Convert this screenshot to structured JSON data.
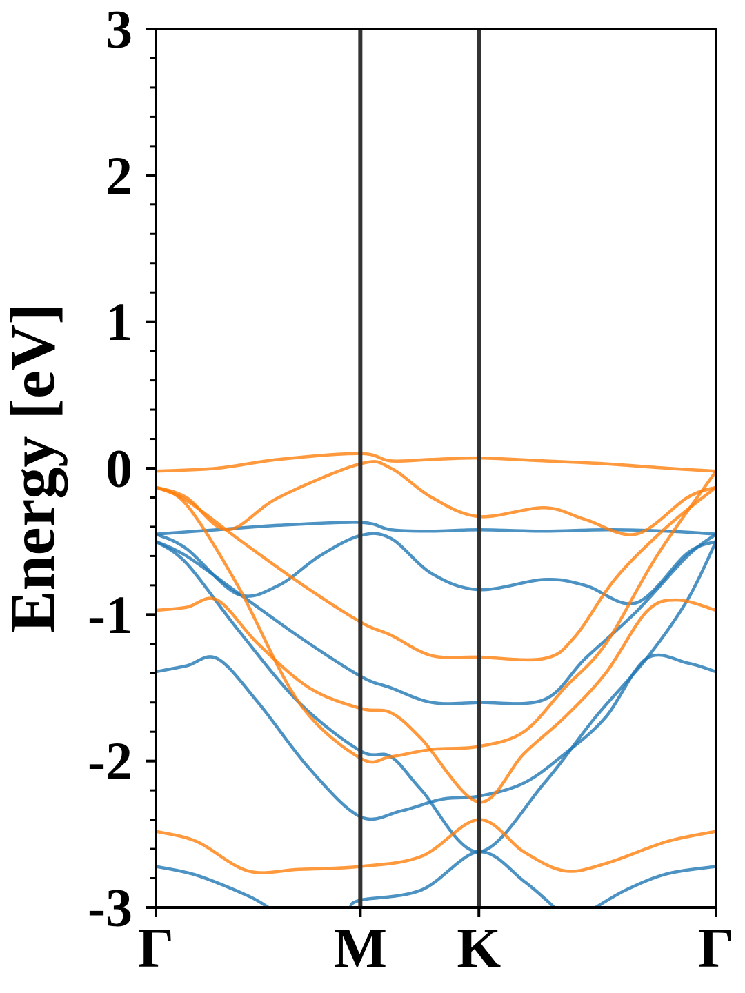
{
  "chart_data": {
    "type": "line",
    "ylabel": "Energy [eV]",
    "xlabel": "",
    "ylim": [
      -3,
      3
    ],
    "y_ticks": [
      "-3",
      "-2",
      "-1",
      "0",
      "1",
      "2",
      "3"
    ],
    "y_tick_values": [
      -3,
      -2,
      -1,
      0,
      1,
      2,
      3
    ],
    "k_path": [
      "Γ",
      "M",
      "K",
      "Γ"
    ],
    "k_path_positions": [
      0,
      1,
      1.58,
      2.74
    ],
    "grid": false,
    "colors": {
      "band_a": "#1f77b4",
      "band_b": "#ff7f0e",
      "k_lines": "#333333",
      "axes": "#000000"
    },
    "series": [
      {
        "group": "band_a",
        "points": [
          [
            0,
            -0.45
          ],
          [
            0.3,
            -0.42
          ],
          [
            0.6,
            -0.39
          ],
          [
            1.0,
            -0.37
          ],
          [
            1.15,
            -0.42
          ],
          [
            1.35,
            -0.43
          ],
          [
            1.58,
            -0.42
          ],
          [
            1.9,
            -0.43
          ],
          [
            2.2,
            -0.42
          ],
          [
            2.5,
            -0.43
          ],
          [
            2.74,
            -0.45
          ]
        ]
      },
      {
        "group": "band_a",
        "points": [
          [
            0,
            -0.45
          ],
          [
            0.15,
            -0.55
          ],
          [
            0.4,
            -0.86
          ],
          [
            0.6,
            -0.8
          ],
          [
            0.8,
            -0.6
          ],
          [
            1.0,
            -0.46
          ],
          [
            1.15,
            -0.48
          ],
          [
            1.35,
            -0.72
          ],
          [
            1.58,
            -0.83
          ],
          [
            1.9,
            -0.76
          ],
          [
            2.1,
            -0.8
          ],
          [
            2.35,
            -0.92
          ],
          [
            2.6,
            -0.58
          ],
          [
            2.74,
            -0.5
          ]
        ]
      },
      {
        "group": "band_a",
        "points": [
          [
            0,
            -0.5
          ],
          [
            0.15,
            -0.6
          ],
          [
            0.4,
            -0.85
          ],
          [
            0.7,
            -1.15
          ],
          [
            1.0,
            -1.42
          ],
          [
            1.15,
            -1.5
          ],
          [
            1.35,
            -1.6
          ],
          [
            1.58,
            -1.6
          ],
          [
            1.9,
            -1.58
          ],
          [
            2.1,
            -1.3
          ],
          [
            2.35,
            -0.98
          ],
          [
            2.6,
            -0.6
          ],
          [
            2.74,
            -0.45
          ]
        ]
      },
      {
        "group": "band_a",
        "points": [
          [
            0,
            -0.5
          ],
          [
            0.15,
            -0.65
          ],
          [
            0.4,
            -1.1
          ],
          [
            0.7,
            -1.6
          ],
          [
            1.0,
            -1.93
          ],
          [
            1.15,
            -1.97
          ],
          [
            1.3,
            -2.2
          ],
          [
            1.58,
            -2.62
          ],
          [
            1.9,
            -2.15
          ],
          [
            2.15,
            -1.7
          ],
          [
            2.4,
            -1.3
          ],
          [
            2.6,
            -0.9
          ],
          [
            2.74,
            -0.5
          ]
        ]
      },
      {
        "group": "band_a",
        "points": [
          [
            0,
            -1.39
          ],
          [
            0.15,
            -1.35
          ],
          [
            0.3,
            -1.3
          ],
          [
            0.5,
            -1.6
          ],
          [
            0.75,
            -2.05
          ],
          [
            1.0,
            -2.38
          ],
          [
            1.2,
            -2.34
          ],
          [
            1.4,
            -2.26
          ],
          [
            1.58,
            -2.24
          ],
          [
            1.8,
            -2.15
          ],
          [
            2.0,
            -1.95
          ],
          [
            2.2,
            -1.7
          ],
          [
            2.4,
            -1.3
          ],
          [
            2.6,
            -1.33
          ],
          [
            2.74,
            -1.39
          ]
        ]
      },
      {
        "group": "band_a",
        "points": [
          [
            0,
            -2.72
          ],
          [
            0.2,
            -2.78
          ],
          [
            0.45,
            -2.92
          ],
          [
            0.55,
            -3.0
          ]
        ]
      },
      {
        "group": "band_a",
        "points": [
          [
            0.95,
            -3.0
          ],
          [
            1.0,
            -2.95
          ],
          [
            1.3,
            -2.88
          ],
          [
            1.58,
            -2.62
          ],
          [
            1.8,
            -2.82
          ],
          [
            1.95,
            -3.0
          ]
        ]
      },
      {
        "group": "band_a",
        "points": [
          [
            2.15,
            -3.0
          ],
          [
            2.3,
            -2.88
          ],
          [
            2.5,
            -2.77
          ],
          [
            2.74,
            -2.72
          ]
        ]
      },
      {
        "group": "band_b",
        "points": [
          [
            0,
            -0.02
          ],
          [
            0.3,
            0.0
          ],
          [
            0.6,
            0.06
          ],
          [
            1.0,
            0.1
          ],
          [
            1.15,
            0.05
          ],
          [
            1.35,
            0.06
          ],
          [
            1.58,
            0.07
          ],
          [
            1.9,
            0.05
          ],
          [
            2.2,
            0.03
          ],
          [
            2.5,
            0.0
          ],
          [
            2.74,
            -0.02
          ]
        ]
      },
      {
        "group": "band_b",
        "points": [
          [
            0,
            -0.13
          ],
          [
            0.15,
            -0.2
          ],
          [
            0.35,
            -0.42
          ],
          [
            0.6,
            -0.2
          ],
          [
            1.0,
            0.03
          ],
          [
            1.15,
            0.0
          ],
          [
            1.35,
            -0.2
          ],
          [
            1.58,
            -0.33
          ],
          [
            1.9,
            -0.27
          ],
          [
            2.1,
            -0.35
          ],
          [
            2.35,
            -0.45
          ],
          [
            2.6,
            -0.2
          ],
          [
            2.74,
            -0.13
          ]
        ]
      },
      {
        "group": "band_b",
        "points": [
          [
            0,
            -0.13
          ],
          [
            0.15,
            -0.22
          ],
          [
            0.4,
            -0.48
          ],
          [
            0.7,
            -0.78
          ],
          [
            1.0,
            -1.05
          ],
          [
            1.15,
            -1.14
          ],
          [
            1.35,
            -1.28
          ],
          [
            1.58,
            -1.29
          ],
          [
            1.9,
            -1.3
          ],
          [
            2.05,
            -1.15
          ],
          [
            2.25,
            -0.75
          ],
          [
            2.5,
            -0.4
          ],
          [
            2.74,
            -0.13
          ]
        ]
      },
      {
        "group": "band_b",
        "points": [
          [
            0,
            -0.97
          ],
          [
            0.15,
            -0.95
          ],
          [
            0.3,
            -0.9
          ],
          [
            0.5,
            -1.2
          ],
          [
            0.75,
            -1.5
          ],
          [
            1.0,
            -1.64
          ],
          [
            1.15,
            -1.67
          ],
          [
            1.3,
            -1.85
          ],
          [
            1.58,
            -2.28
          ],
          [
            1.8,
            -1.95
          ],
          [
            2.0,
            -1.7
          ],
          [
            2.2,
            -1.4
          ],
          [
            2.4,
            -0.98
          ],
          [
            2.55,
            -0.9
          ],
          [
            2.74,
            -0.97
          ]
        ]
      },
      {
        "group": "band_b",
        "points": [
          [
            0,
            -0.13
          ],
          [
            0.15,
            -0.25
          ],
          [
            0.4,
            -0.8
          ],
          [
            0.7,
            -1.6
          ],
          [
            1.0,
            -1.98
          ],
          [
            1.15,
            -1.97
          ],
          [
            1.35,
            -1.92
          ],
          [
            1.58,
            -1.9
          ],
          [
            1.8,
            -1.8
          ],
          [
            2.0,
            -1.5
          ],
          [
            2.2,
            -1.2
          ],
          [
            2.45,
            -0.6
          ],
          [
            2.74,
            -0.02
          ]
        ]
      },
      {
        "group": "band_b",
        "points": [
          [
            0,
            -2.48
          ],
          [
            0.2,
            -2.55
          ],
          [
            0.45,
            -2.75
          ],
          [
            0.7,
            -2.74
          ],
          [
            1.0,
            -2.72
          ],
          [
            1.3,
            -2.65
          ],
          [
            1.58,
            -2.4
          ],
          [
            1.8,
            -2.62
          ],
          [
            2.0,
            -2.75
          ],
          [
            2.2,
            -2.7
          ],
          [
            2.5,
            -2.55
          ],
          [
            2.74,
            -2.48
          ]
        ]
      }
    ]
  }
}
